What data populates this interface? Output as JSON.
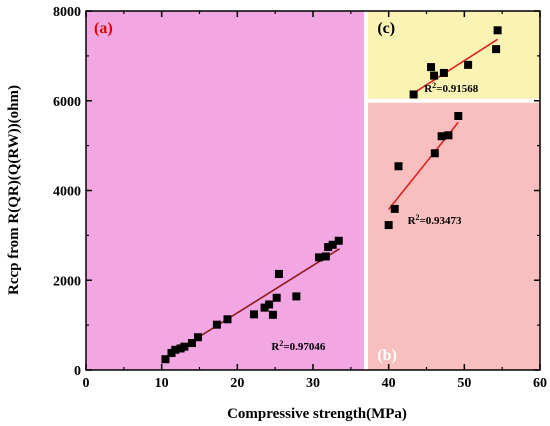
{
  "chart_data": {
    "type": "scatter",
    "xlabel": "Compressive strength(MPa)",
    "ylabel": "Rccp from R(QR)(Q(RW))(ohm)",
    "xlim": [
      0,
      60
    ],
    "ylim": [
      0,
      8000
    ],
    "x_ticks": [
      0,
      10,
      20,
      30,
      40,
      50,
      60
    ],
    "y_ticks": [
      0,
      2000,
      4000,
      6000,
      8000
    ],
    "x_tick_labels": [
      "0",
      "10",
      "20",
      "30",
      "40",
      "50",
      "60"
    ],
    "y_tick_labels": [
      "0",
      "2000",
      "4000",
      "6000",
      "8000"
    ],
    "regions": [
      {
        "label": "(a)",
        "x_range": [
          0,
          37
        ],
        "y_range": [
          0,
          8000
        ],
        "color": "#f2a6e2"
      },
      {
        "label": "(c)",
        "x_range": [
          37,
          60
        ],
        "y_range": [
          6000,
          8000
        ],
        "color": "#fbf3b4"
      },
      {
        "label": "(b)",
        "x_range": [
          37,
          60
        ],
        "y_range": [
          0,
          6000
        ],
        "color": "#f9bfbf"
      }
    ],
    "series": [
      {
        "label": "(a)",
        "r2": "R2=0.97046",
        "fit": [
          [
            10.5,
            270
          ],
          [
            33.5,
            2700
          ]
        ],
        "points": [
          [
            10.5,
            240
          ],
          [
            11.3,
            380
          ],
          [
            11.8,
            450
          ],
          [
            12.5,
            480
          ],
          [
            13.0,
            520
          ],
          [
            14.0,
            600
          ],
          [
            14.8,
            730
          ],
          [
            17.3,
            1010
          ],
          [
            18.7,
            1130
          ],
          [
            22.2,
            1240
          ],
          [
            23.6,
            1390
          ],
          [
            24.2,
            1460
          ],
          [
            24.7,
            1230
          ],
          [
            25.2,
            1610
          ],
          [
            25.5,
            2140
          ],
          [
            27.8,
            1640
          ],
          [
            30.8,
            2510
          ],
          [
            31.7,
            2530
          ],
          [
            32.0,
            2740
          ],
          [
            32.6,
            2790
          ],
          [
            33.4,
            2880
          ]
        ]
      },
      {
        "label": "(b)",
        "r2": "R2=0.93473",
        "fit": [
          [
            40.0,
            3580
          ],
          [
            49.2,
            5520
          ]
        ],
        "points": [
          [
            40.0,
            3230
          ],
          [
            40.8,
            3590
          ],
          [
            41.3,
            4540
          ],
          [
            46.1,
            4830
          ],
          [
            47.0,
            5210
          ],
          [
            47.9,
            5230
          ],
          [
            49.2,
            5660
          ]
        ]
      },
      {
        "label": "(c)",
        "r2": "R2=0.91568",
        "fit": [
          [
            43.2,
            6160
          ],
          [
            54.4,
            7370
          ]
        ],
        "points": [
          [
            43.3,
            6140
          ],
          [
            45.6,
            6750
          ],
          [
            46.0,
            6560
          ],
          [
            47.3,
            6620
          ],
          [
            50.5,
            6800
          ],
          [
            54.2,
            7150
          ],
          [
            54.4,
            7570
          ]
        ]
      }
    ]
  }
}
